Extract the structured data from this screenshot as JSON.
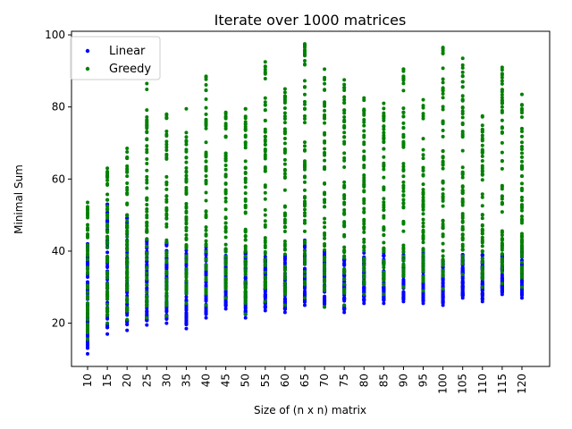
{
  "chart_data": {
    "type": "scatter",
    "title": "Iterate over 1000 matrices",
    "xlabel": "Size of (n x n) matrix",
    "ylabel": "Minimal Sum",
    "categories": [
      "10",
      "15",
      "20",
      "25",
      "30",
      "35",
      "40",
      "45",
      "50",
      "55",
      "60",
      "65",
      "70",
      "75",
      "80",
      "85",
      "90",
      "95",
      "100",
      "105",
      "110",
      "115",
      "120"
    ],
    "ylim": [
      8,
      101
    ],
    "yticks": [
      20,
      40,
      60,
      80,
      100
    ],
    "legend_position": "top-left",
    "series": [
      {
        "name": "Linear",
        "color": "#0000ff",
        "ranges": [
          {
            "x": "10",
            "min": 11.5,
            "max": 42
          },
          {
            "x": "15",
            "min": 17,
            "max": 53
          },
          {
            "x": "20",
            "min": 18,
            "max": 50
          },
          {
            "x": "25",
            "min": 19.5,
            "max": 43
          },
          {
            "x": "30",
            "min": 20,
            "max": 42.5
          },
          {
            "x": "35",
            "min": 18.5,
            "max": 41
          },
          {
            "x": "40",
            "min": 21.5,
            "max": 41
          },
          {
            "x": "45",
            "min": 24,
            "max": 40.5
          },
          {
            "x": "50",
            "min": 21.5,
            "max": 40
          },
          {
            "x": "55",
            "min": 23.5,
            "max": 38.5
          },
          {
            "x": "60",
            "min": 23,
            "max": 40.5
          },
          {
            "x": "65",
            "min": 25,
            "max": 43
          },
          {
            "x": "70",
            "min": 24.5,
            "max": 40
          },
          {
            "x": "75",
            "min": 23,
            "max": 38.5
          },
          {
            "x": "80",
            "min": 25.5,
            "max": 39.5
          },
          {
            "x": "85",
            "min": 25.5,
            "max": 39.5
          },
          {
            "x": "90",
            "min": 26,
            "max": 39
          },
          {
            "x": "95",
            "min": 25.5,
            "max": 39.5
          },
          {
            "x": "100",
            "min": 25,
            "max": 37.5
          },
          {
            "x": "105",
            "min": 27,
            "max": 39
          },
          {
            "x": "110",
            "min": 26,
            "max": 39
          },
          {
            "x": "115",
            "min": 28,
            "max": 39
          },
          {
            "x": "120",
            "min": 27,
            "max": 41
          }
        ]
      },
      {
        "name": "Greedy",
        "color": "#008000",
        "ranges": [
          {
            "x": "10",
            "min": 15.5,
            "max": 53.5
          },
          {
            "x": "15",
            "min": 20,
            "max": 63
          },
          {
            "x": "20",
            "min": 21,
            "max": 68.5
          },
          {
            "x": "25",
            "min": 21.5,
            "max": 86.5
          },
          {
            "x": "30",
            "min": 22,
            "max": 78
          },
          {
            "x": "35",
            "min": 25.5,
            "max": 79.5
          },
          {
            "x": "40",
            "min": 25,
            "max": 88.5
          },
          {
            "x": "45",
            "min": 27,
            "max": 78.5
          },
          {
            "x": "50",
            "min": 22.5,
            "max": 79.5
          },
          {
            "x": "55",
            "min": 26,
            "max": 92.5
          },
          {
            "x": "60",
            "min": 25,
            "max": 85
          },
          {
            "x": "65",
            "min": 27,
            "max": 97.5
          },
          {
            "x": "70",
            "min": 24.5,
            "max": 90.5
          },
          {
            "x": "75",
            "min": 25,
            "max": 87.5
          },
          {
            "x": "80",
            "min": 28,
            "max": 82.5
          },
          {
            "x": "85",
            "min": 28,
            "max": 81
          },
          {
            "x": "90",
            "min": 30,
            "max": 90.5
          },
          {
            "x": "95",
            "min": 29,
            "max": 82
          },
          {
            "x": "100",
            "min": 29.5,
            "max": 96.5
          },
          {
            "x": "105",
            "min": 33.5,
            "max": 93.5
          },
          {
            "x": "110",
            "min": 30,
            "max": 77.5
          },
          {
            "x": "115",
            "min": 31,
            "max": 91
          },
          {
            "x": "120",
            "min": 30,
            "max": 83.5
          }
        ]
      }
    ]
  }
}
